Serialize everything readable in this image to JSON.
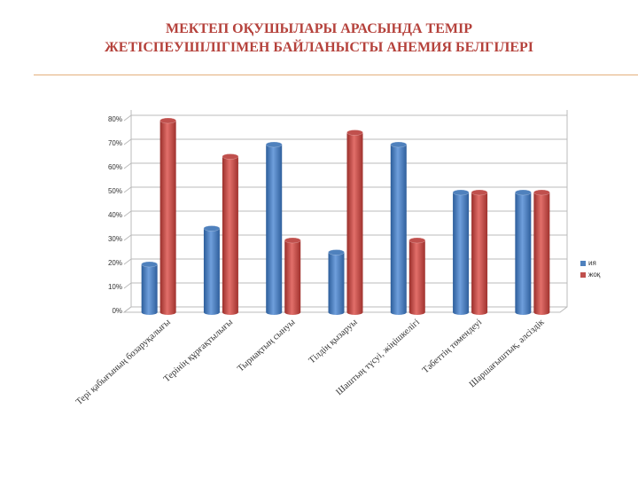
{
  "chart_data": {
    "type": "bar",
    "title": "МЕКТЕП ОҚУШЫЛАРЫ АРАСЫНДА ТЕМІР ЖЕТІСПЕУШІЛІГІМЕН БАЙЛАНЫСТЫ АНЕМИЯ БЕЛГІЛЕРІ",
    "categories": [
      "Тері қабығының бозаруқалығы",
      "Терінің құрғақтылығы",
      "Тырнақтың сынуы",
      "Тілдің қызаруы",
      "Шаштың түсуі, жіңішкелігі",
      "Тәбеттің төмендеуі",
      "Шаршағыштық, әлсіздік"
    ],
    "series": [
      {
        "name": "ия",
        "color": "#4f81bd",
        "values": [
          20,
          35,
          70,
          25,
          70,
          50,
          50
        ]
      },
      {
        "name": "жоқ",
        "color": "#c0504d",
        "values": [
          80,
          65,
          30,
          75,
          30,
          50,
          50
        ]
      }
    ],
    "ylim": [
      0,
      80
    ],
    "yticks": [
      {
        "value": 0,
        "label": "0%"
      },
      {
        "value": 10,
        "label": "10%"
      },
      {
        "value": 20,
        "label": "20%"
      },
      {
        "value": 30,
        "label": "30%"
      },
      {
        "value": 40,
        "label": "40%"
      },
      {
        "value": 50,
        "label": "50%"
      },
      {
        "value": 60,
        "label": "60%"
      },
      {
        "value": 70,
        "label": "70%"
      },
      {
        "value": 80,
        "label": "80%"
      }
    ],
    "grid": true,
    "legend": "right"
  }
}
